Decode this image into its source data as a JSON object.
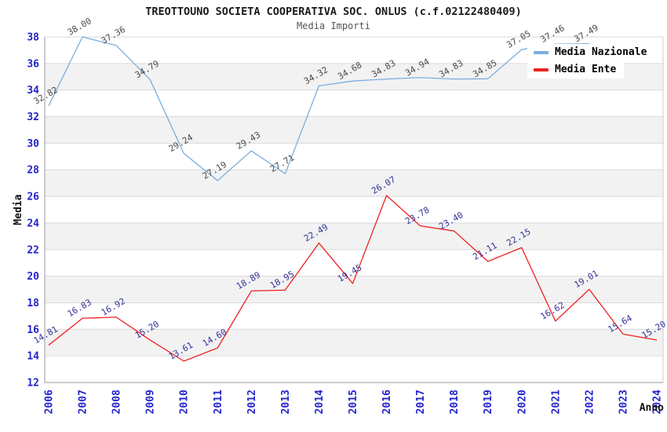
{
  "header": {
    "title": "TREOTTOUNO SOCIETA COOPERATIVA SOC. ONLUS (c.f.02122480409)",
    "subtitle": "Media Importi"
  },
  "chart_data": {
    "type": "line",
    "title": "TREOTTOUNO SOCIETA COOPERATIVA SOC. ONLUS (c.f.02122480409)",
    "subtitle": "Media Importi",
    "xlabel": "Anno",
    "ylabel": "Media",
    "ylim": [
      12,
      38
    ],
    "ytick_step": 2,
    "y_ticks": [
      12,
      14,
      16,
      18,
      20,
      22,
      24,
      26,
      28,
      30,
      32,
      34,
      36,
      38
    ],
    "x": [
      "2006",
      "2007",
      "2008",
      "2009",
      "2010",
      "2011",
      "2012",
      "2013",
      "2014",
      "2015",
      "2016",
      "2017",
      "2018",
      "2019",
      "2020",
      "2021",
      "2022",
      "2023",
      "2024"
    ],
    "series": [
      {
        "name": "Media Nazionale",
        "color": "#7aaede",
        "label_color": "#4a4a4a",
        "values": [
          32.82,
          38.0,
          37.36,
          34.79,
          29.24,
          27.19,
          29.43,
          27.71,
          34.32,
          34.68,
          34.83,
          34.94,
          34.83,
          34.85,
          37.05,
          37.46,
          37.49,
          null,
          null
        ]
      },
      {
        "name": "Media Ente",
        "color": "#ef1f1f",
        "label_color": "#333399",
        "values": [
          14.81,
          16.83,
          16.92,
          15.2,
          13.61,
          14.6,
          18.89,
          18.95,
          22.49,
          19.45,
          26.07,
          23.78,
          23.4,
          21.11,
          22.15,
          16.62,
          19.01,
          15.64,
          15.2
        ]
      }
    ],
    "legend_position": "top-right",
    "grid": {
      "horizontal_lines": true,
      "alternating_bands": true
    },
    "style": {
      "grid_color": "#d9d9d9",
      "band_color": "#f2f2f2",
      "axis_color": "#9a9a9a",
      "right_border_color": "#cccccc",
      "tick_label_color": "#2323cc",
      "background": "#ffffff"
    }
  }
}
